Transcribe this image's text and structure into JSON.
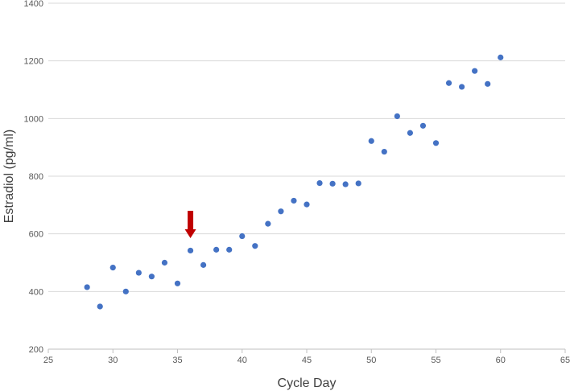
{
  "chart_data": {
    "type": "scatter",
    "title": "",
    "xlabel": "Cycle Day",
    "ylabel": "Estradiol (pg/ml)",
    "xlim": [
      25,
      65
    ],
    "ylim": [
      200,
      1400
    ],
    "xticks": [
      25,
      30,
      35,
      40,
      45,
      50,
      55,
      60,
      65
    ],
    "yticks": [
      200,
      400,
      600,
      800,
      1000,
      1200,
      1400
    ],
    "grid": "horizontal",
    "legend": "none",
    "marker_color": "#4472C4",
    "series": [
      {
        "x": [
          28,
          29,
          30,
          31,
          32,
          33,
          34,
          35,
          36,
          37,
          38,
          39,
          40,
          41,
          42,
          43,
          44,
          45,
          46,
          47,
          48,
          49,
          50,
          51,
          52,
          53,
          54,
          55,
          56,
          57,
          58,
          59,
          60
        ],
        "y": [
          415,
          348,
          483,
          400,
          465,
          452,
          500,
          428,
          542,
          492,
          545,
          545,
          592,
          558,
          635,
          678,
          715,
          702,
          776,
          774,
          772,
          775,
          922,
          885,
          1008,
          950,
          975,
          915,
          1123,
          1110,
          1165,
          1120,
          1212
        ]
      }
    ],
    "annotations": [
      {
        "type": "arrow",
        "x": 36,
        "y_from": 680,
        "y_to": 585,
        "direction": "down",
        "color": "#C00000"
      }
    ]
  }
}
